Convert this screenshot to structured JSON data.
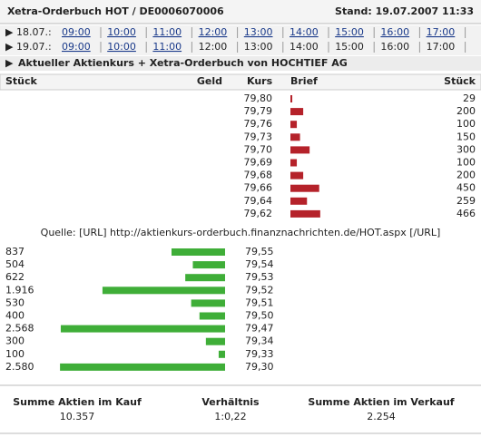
{
  "header": {
    "title": "Xetra-Orderbuch HOT / DE0006070006",
    "stand": "Stand: 19.07.2007 11:33"
  },
  "time_rows": [
    {
      "date": "18.07.:",
      "times": [
        "09:00",
        "10:00",
        "11:00",
        "12:00",
        "13:00",
        "14:00",
        "15:00",
        "16:00",
        "17:00"
      ],
      "links": [
        true,
        true,
        true,
        true,
        true,
        true,
        true,
        true,
        true
      ]
    },
    {
      "date": "19.07.:",
      "times": [
        "09:00",
        "10:00",
        "11:00",
        "12:00",
        "13:00",
        "14:00",
        "15:00",
        "16:00",
        "17:00"
      ],
      "links": [
        true,
        true,
        true,
        false,
        false,
        false,
        false,
        false,
        false
      ]
    }
  ],
  "section_title": "Aktueller Aktienkurs + Xetra-Orderbuch von HOCHTIEF AG",
  "columns": {
    "stueck_left": "Stück",
    "geld": "Geld",
    "kurs": "Kurs",
    "brief": "Brief",
    "stueck_right": "Stück"
  },
  "orderbook": {
    "ask": [
      {
        "kurs": "79,80",
        "stueck": 29
      },
      {
        "kurs": "79,79",
        "stueck": 200
      },
      {
        "kurs": "79,76",
        "stueck": 100
      },
      {
        "kurs": "79,73",
        "stueck": 150
      },
      {
        "kurs": "79,70",
        "stueck": 300
      },
      {
        "kurs": "79,69",
        "stueck": 100
      },
      {
        "kurs": "79,68",
        "stueck": 200
      },
      {
        "kurs": "79,66",
        "stueck": 450
      },
      {
        "kurs": "79,64",
        "stueck": 259
      },
      {
        "kurs": "79,62",
        "stueck": 466
      }
    ],
    "bid": [
      {
        "kurs": "79,55",
        "stueck": 837
      },
      {
        "kurs": "79,54",
        "stueck": 504
      },
      {
        "kurs": "79,53",
        "stueck": 622
      },
      {
        "kurs": "79,52",
        "stueck": {
          "value": 1916,
          "label": "1.916"
        }
      },
      {
        "kurs": "79,51",
        "stueck": 530
      },
      {
        "kurs": "79,50",
        "stueck": 400
      },
      {
        "kurs": "79,47",
        "stueck": {
          "value": 2568,
          "label": "2.568"
        }
      },
      {
        "kurs": "79,34",
        "stueck": 300
      },
      {
        "kurs": "79,33",
        "stueck": 100
      },
      {
        "kurs": "79,30",
        "stueck": {
          "value": 2580,
          "label": "2.580"
        }
      }
    ]
  },
  "source": "Quelle: [URL] http://aktienkurs-orderbuch.finanznachrichten.de/HOT.aspx [/URL]",
  "summary": [
    {
      "label": "Summe Aktien im Kauf",
      "value": "10.357"
    },
    {
      "label": "Verhältnis",
      "value": "1:0,22"
    },
    {
      "label": "Summe Aktien im Verkauf",
      "value": "2.254"
    }
  ]
}
